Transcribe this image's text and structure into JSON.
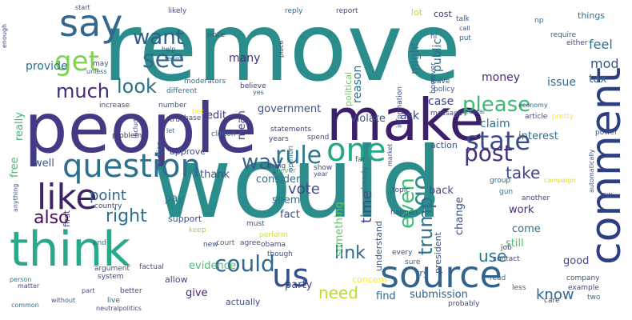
{
  "words": [
    {
      "text": "remove",
      "weight": 100,
      "color": "#2a8c8b"
    },
    {
      "text": "would",
      "weight": 96,
      "color": "#2a8c8b"
    },
    {
      "text": "people",
      "weight": 84,
      "color": "#443983"
    },
    {
      "text": "make",
      "weight": 72,
      "color": "#3b1f6a"
    },
    {
      "text": "think",
      "weight": 58,
      "color": "#2aa889"
    },
    {
      "text": "source",
      "weight": 50,
      "color": "#33638d"
    },
    {
      "text": "comment",
      "weight": 46,
      "color": "#2d3f80"
    },
    {
      "text": "say",
      "weight": 44,
      "color": "#31688e"
    },
    {
      "text": "like",
      "weight": 42,
      "color": "#3c2369"
    },
    {
      "text": "question",
      "weight": 40,
      "color": "#2c6f8e"
    },
    {
      "text": "one",
      "weight": 38,
      "color": "#22a884"
    },
    {
      "text": "us",
      "weight": 36,
      "color": "#31508c"
    },
    {
      "text": "get",
      "weight": 34,
      "color": "#7fd34e"
    },
    {
      "text": "state",
      "weight": 30,
      "color": "#3a4a8b"
    },
    {
      "text": "go",
      "weight": 30,
      "color": "#2e8c8a"
    },
    {
      "text": "see",
      "weight": 28,
      "color": "#2e6c8e"
    },
    {
      "text": "rule",
      "weight": 28,
      "color": "#2a788e"
    },
    {
      "text": "post",
      "weight": 26,
      "color": "#46307e"
    },
    {
      "text": "could",
      "weight": 26,
      "color": "#31688e"
    },
    {
      "text": "way",
      "weight": 24,
      "color": "#34618d"
    },
    {
      "text": "want",
      "weight": 24,
      "color": "#2f5e8e"
    },
    {
      "text": "look",
      "weight": 24,
      "color": "#2c718e"
    },
    {
      "text": "please",
      "weight": 24,
      "color": "#3bbb75"
    },
    {
      "text": "much",
      "weight": 24,
      "color": "#46277b"
    },
    {
      "text": "even",
      "weight": 22,
      "color": "#3dbc74"
    },
    {
      "text": "trump",
      "weight": 22,
      "color": "#2d718e"
    },
    {
      "text": "right",
      "weight": 22,
      "color": "#2d6f8e"
    },
    {
      "text": "also",
      "weight": 22,
      "color": "#460b5e"
    },
    {
      "text": "link",
      "weight": 22,
      "color": "#306b8e"
    },
    {
      "text": "use",
      "weight": 20,
      "color": "#2a768e"
    },
    {
      "text": "need",
      "weight": 20,
      "color": "#b5de2b"
    },
    {
      "text": "take",
      "weight": 20,
      "color": "#3f4788"
    },
    {
      "text": "point",
      "weight": 18,
      "color": "#31668e"
    },
    {
      "text": "vote",
      "weight": 18,
      "color": "#3f4b89"
    },
    {
      "text": "time",
      "weight": 18,
      "color": "#3f4889"
    },
    {
      "text": "know",
      "weight": 18,
      "color": "#31678e"
    },
    {
      "text": "feel",
      "weight": 16,
      "color": "#2c718e"
    },
    {
      "text": "mod",
      "weight": 16,
      "color": "#3b528b"
    },
    {
      "text": "tax",
      "weight": 14,
      "color": "#31688e"
    },
    {
      "text": "provide",
      "weight": 14,
      "color": "#2c728e"
    },
    {
      "text": "many",
      "weight": 14,
      "color": "#46307e"
    },
    {
      "text": "might",
      "weight": 14,
      "color": "#2c738e"
    },
    {
      "text": "reason",
      "weight": 14,
      "color": "#2f6c8e"
    },
    {
      "text": "public",
      "weight": 14,
      "color": "#2e6d8e"
    },
    {
      "text": "money",
      "weight": 14,
      "color": "#4b2b7f"
    },
    {
      "text": "issue",
      "weight": 14,
      "color": "#2f6e8e"
    },
    {
      "text": "case",
      "weight": 14,
      "color": "#414487"
    },
    {
      "text": "ask",
      "weight": 14,
      "color": "#404588"
    },
    {
      "text": "claim",
      "weight": 14,
      "color": "#2e6f8e"
    },
    {
      "text": "government",
      "weight": 12,
      "color": "#3a538b"
    },
    {
      "text": "edit",
      "weight": 12,
      "color": "#453781"
    },
    {
      "text": "violate",
      "weight": 12,
      "color": "#3a548c"
    },
    {
      "text": "interest",
      "weight": 12,
      "color": "#2c728e"
    },
    {
      "text": "really",
      "weight": 12,
      "color": "#35b779"
    },
    {
      "text": "free",
      "weight": 12,
      "color": "#45c06f"
    },
    {
      "text": "mean",
      "weight": 12,
      "color": "#414487"
    },
    {
      "text": "thank",
      "weight": 12,
      "color": "#3b528b"
    },
    {
      "text": "consider",
      "weight": 12,
      "color": "#2d708e"
    },
    {
      "text": "fact",
      "weight": 12,
      "color": "#3e4989"
    },
    {
      "text": "something",
      "weight": 12,
      "color": "#5ec962"
    },
    {
      "text": "change",
      "weight": 12,
      "color": "#3b528b"
    },
    {
      "text": "back",
      "weight": 12,
      "color": "#3e4c8a"
    },
    {
      "text": "action",
      "weight": 10,
      "color": "#3d4e8a"
    },
    {
      "text": "come",
      "weight": 12,
      "color": "#2e6d8e"
    },
    {
      "text": "work",
      "weight": 12,
      "color": "#472d7b"
    },
    {
      "text": "still",
      "weight": 12,
      "color": "#4ac16d"
    },
    {
      "text": "well",
      "weight": 12,
      "color": "#3b528b"
    },
    {
      "text": "pay",
      "weight": 12,
      "color": "#2a788e"
    },
    {
      "text": "seem",
      "weight": 12,
      "color": "#2d708e"
    },
    {
      "text": "approve",
      "weight": 10,
      "color": "#3e4a89"
    },
    {
      "text": "support",
      "weight": 10,
      "color": "#3b528b"
    },
    {
      "text": "evidence",
      "weight": 12,
      "color": "#46c06f"
    },
    {
      "text": "party",
      "weight": 12,
      "color": "#3f4788"
    },
    {
      "text": "allow",
      "weight": 10,
      "color": "#3e4a89"
    },
    {
      "text": "give",
      "weight": 12,
      "color": "#482475"
    },
    {
      "text": "actually",
      "weight": 10,
      "color": "#3b528b"
    },
    {
      "text": "find",
      "weight": 12,
      "color": "#31678e"
    },
    {
      "text": "concern",
      "weight": 10,
      "color": "#fde725"
    },
    {
      "text": "submission",
      "weight": 12,
      "color": "#35608d"
    },
    {
      "text": "good",
      "weight": 12,
      "color": "#3e4989"
    },
    {
      "text": "understand",
      "weight": 10,
      "color": "#38598c"
    },
    {
      "text": "president",
      "weight": 10,
      "color": "#3b528b"
    },
    {
      "text": "try",
      "weight": 10,
      "color": "#31688e"
    },
    {
      "text": "first",
      "weight": 10,
      "color": "#3e4989"
    },
    {
      "text": "things",
      "weight": 10,
      "color": "#2c738e"
    },
    {
      "text": "cost",
      "weight": 10,
      "color": "#46337f"
    },
    {
      "text": "lot",
      "weight": 10,
      "color": "#b5de2b"
    },
    {
      "text": "political",
      "weight": 10,
      "color": "#6ccd5a"
    },
    {
      "text": "statements",
      "weight": 8,
      "color": "#453882"
    },
    {
      "text": "years",
      "weight": 8,
      "color": "#3f4889"
    },
    {
      "text": "spend",
      "weight": 8,
      "color": "#3b528b"
    },
    {
      "text": "clinton",
      "weight": 8,
      "color": "#31688e"
    },
    {
      "text": "information",
      "weight": 8,
      "color": "#3e4989"
    },
    {
      "text": "however",
      "weight": 8,
      "color": "#3b528b"
    },
    {
      "text": "believe",
      "weight": 8,
      "color": "#414487"
    },
    {
      "text": "moderators",
      "weight": 8,
      "color": "#2d708e"
    },
    {
      "text": "different",
      "weight": 8,
      "color": "#2a788e"
    },
    {
      "text": "increase",
      "weight": 8,
      "color": "#3e4a89"
    },
    {
      "text": "number",
      "weight": 8,
      "color": "#3b528b"
    },
    {
      "text": "problem",
      "weight": 8,
      "color": "#472c7a"
    },
    {
      "text": "election",
      "weight": 8,
      "color": "#31688e"
    },
    {
      "text": "opinion",
      "weight": 8,
      "color": "#2c728e"
    },
    {
      "text": "thing",
      "weight": 8,
      "color": "#414487"
    },
    {
      "text": "never",
      "weight": 8,
      "color": "#4cc26c"
    },
    {
      "text": "show",
      "weight": 8,
      "color": "#3e4989"
    },
    {
      "text": "far",
      "weight": 8,
      "color": "#3b528b"
    },
    {
      "text": "already",
      "weight": 8,
      "color": "#31688e"
    },
    {
      "text": "topic",
      "weight": 8,
      "color": "#3e4989"
    },
    {
      "text": "happen",
      "weight": 8,
      "color": "#3b528b"
    },
    {
      "text": "gun",
      "weight": 8,
      "color": "#2a788e"
    },
    {
      "text": "another",
      "weight": 8,
      "color": "#3e4989"
    },
    {
      "text": "group",
      "weight": 8,
      "color": "#31688e"
    },
    {
      "text": "campaign",
      "weight": 7,
      "color": "#d8e219"
    },
    {
      "text": "law",
      "weight": 8,
      "color": "#3e4989"
    },
    {
      "text": "automatically",
      "weight": 7,
      "color": "#3b528b"
    },
    {
      "text": "job",
      "weight": 8,
      "color": "#3e4989"
    },
    {
      "text": "contact",
      "weight": 8,
      "color": "#414487"
    },
    {
      "text": "read",
      "weight": 8,
      "color": "#2d708e"
    },
    {
      "text": "less",
      "weight": 8,
      "color": "#31688e"
    },
    {
      "text": "company",
      "weight": 8,
      "color": "#3b528b"
    },
    {
      "text": "example",
      "weight": 8,
      "color": "#3e4989"
    },
    {
      "text": "two",
      "weight": 8,
      "color": "#2c728e"
    },
    {
      "text": "care",
      "weight": 8,
      "color": "#3e4989"
    },
    {
      "text": "every",
      "weight": 8,
      "color": "#3b528b"
    },
    {
      "text": "sure",
      "weight": 8,
      "color": "#31688e"
    },
    {
      "text": "probably",
      "weight": 8,
      "color": "#3e4989"
    },
    {
      "text": "must",
      "weight": 8,
      "color": "#3b528b"
    },
    {
      "text": "agree",
      "weight": 8,
      "color": "#3e4989"
    },
    {
      "text": "perform",
      "weight": 8,
      "color": "#d8e219"
    },
    {
      "text": "obama",
      "weight": 8,
      "color": "#3e4989"
    },
    {
      "text": "though",
      "weight": 8,
      "color": "#3b528b"
    },
    {
      "text": "court",
      "weight": 8,
      "color": "#2c728e"
    },
    {
      "text": "new",
      "weight": 8,
      "color": "#3e4989"
    },
    {
      "text": "argument",
      "weight": 8,
      "color": "#3b528b"
    },
    {
      "text": "keep",
      "weight": 8,
      "color": "#a0da39"
    },
    {
      "text": "country",
      "weight": 8,
      "color": "#414487"
    },
    {
      "text": "end",
      "weight": 8,
      "color": "#31688e"
    },
    {
      "text": "system",
      "weight": 8,
      "color": "#3e4989"
    },
    {
      "text": "factual",
      "weight": 8,
      "color": "#3b528b"
    },
    {
      "text": "better",
      "weight": 8,
      "color": "#3e4989"
    },
    {
      "text": "live",
      "weight": 8,
      "color": "#31688e"
    },
    {
      "text": "part",
      "weight": 7,
      "color": "#3b528b"
    },
    {
      "text": "person",
      "weight": 7,
      "color": "#2a788e"
    },
    {
      "text": "matter",
      "weight": 7,
      "color": "#3e4989"
    },
    {
      "text": "without",
      "weight": 7,
      "color": "#3b528b"
    },
    {
      "text": "neutralpolitics",
      "weight": 7,
      "color": "#3e4989"
    },
    {
      "text": "common",
      "weight": 7,
      "color": "#31688e"
    },
    {
      "text": "anything",
      "weight": 7,
      "color": "#3b528b"
    },
    {
      "text": "true",
      "weight": 8,
      "color": "#3e4989"
    },
    {
      "text": "base",
      "weight": 8,
      "color": "#3b528b"
    },
    {
      "text": "let",
      "weight": 7,
      "color": "#31688e"
    },
    {
      "text": "bot",
      "weight": 8,
      "color": "#fde725"
    },
    {
      "text": "include",
      "weight": 7,
      "color": "#3e4989"
    },
    {
      "text": "may",
      "weight": 8,
      "color": "#3b528b"
    },
    {
      "text": "unless",
      "weight": 7,
      "color": "#31688e"
    },
    {
      "text": "help",
      "weight": 7,
      "color": "#3e4989"
    },
    {
      "text": "start",
      "weight": 7,
      "color": "#3b528b"
    },
    {
      "text": "team",
      "weight": 7,
      "color": "#31688e"
    },
    {
      "text": "likely",
      "weight": 8,
      "color": "#3e4989"
    },
    {
      "text": "since",
      "weight": 8,
      "color": "#3b528b"
    },
    {
      "text": "reply",
      "weight": 8,
      "color": "#31688e"
    },
    {
      "text": "report",
      "weight": 8,
      "color": "#3e4989"
    },
    {
      "text": "place",
      "weight": 7,
      "color": "#3b528b"
    },
    {
      "text": "yes",
      "weight": 7,
      "color": "#31688e"
    },
    {
      "text": "leave",
      "weight": 8,
      "color": "#3e4989"
    },
    {
      "text": "policy",
      "weight": 8,
      "color": "#3b528b"
    },
    {
      "text": "require",
      "weight": 8,
      "color": "#31688e"
    },
    {
      "text": "either",
      "weight": 8,
      "color": "#3e4989"
    },
    {
      "text": "talk",
      "weight": 8,
      "color": "#3b528b"
    },
    {
      "text": "np",
      "weight": 8,
      "color": "#31688e"
    },
    {
      "text": "hi",
      "weight": 8,
      "color": "#3e4989"
    },
    {
      "text": "call",
      "weight": 7,
      "color": "#3b528b"
    },
    {
      "text": "put",
      "weight": 8,
      "color": "#31688e"
    },
    {
      "text": "enough",
      "weight": 7,
      "color": "#3e4989"
    },
    {
      "text": "message",
      "weight": 8,
      "color": "#3b528b"
    },
    {
      "text": "federal",
      "weight": 7,
      "color": "#31688e"
    },
    {
      "text": "article",
      "weight": 8,
      "color": "#3e4989"
    },
    {
      "text": "pretty",
      "weight": 8,
      "color": "#fde725"
    },
    {
      "text": "power",
      "weight": 8,
      "color": "#3b528b"
    },
    {
      "text": "economy",
      "weight": 7,
      "color": "#31688e"
    },
    {
      "text": "market",
      "weight": 7,
      "color": "#3e4989"
    },
    {
      "text": "year",
      "weight": 7,
      "color": "#3b528b"
    }
  ]
}
